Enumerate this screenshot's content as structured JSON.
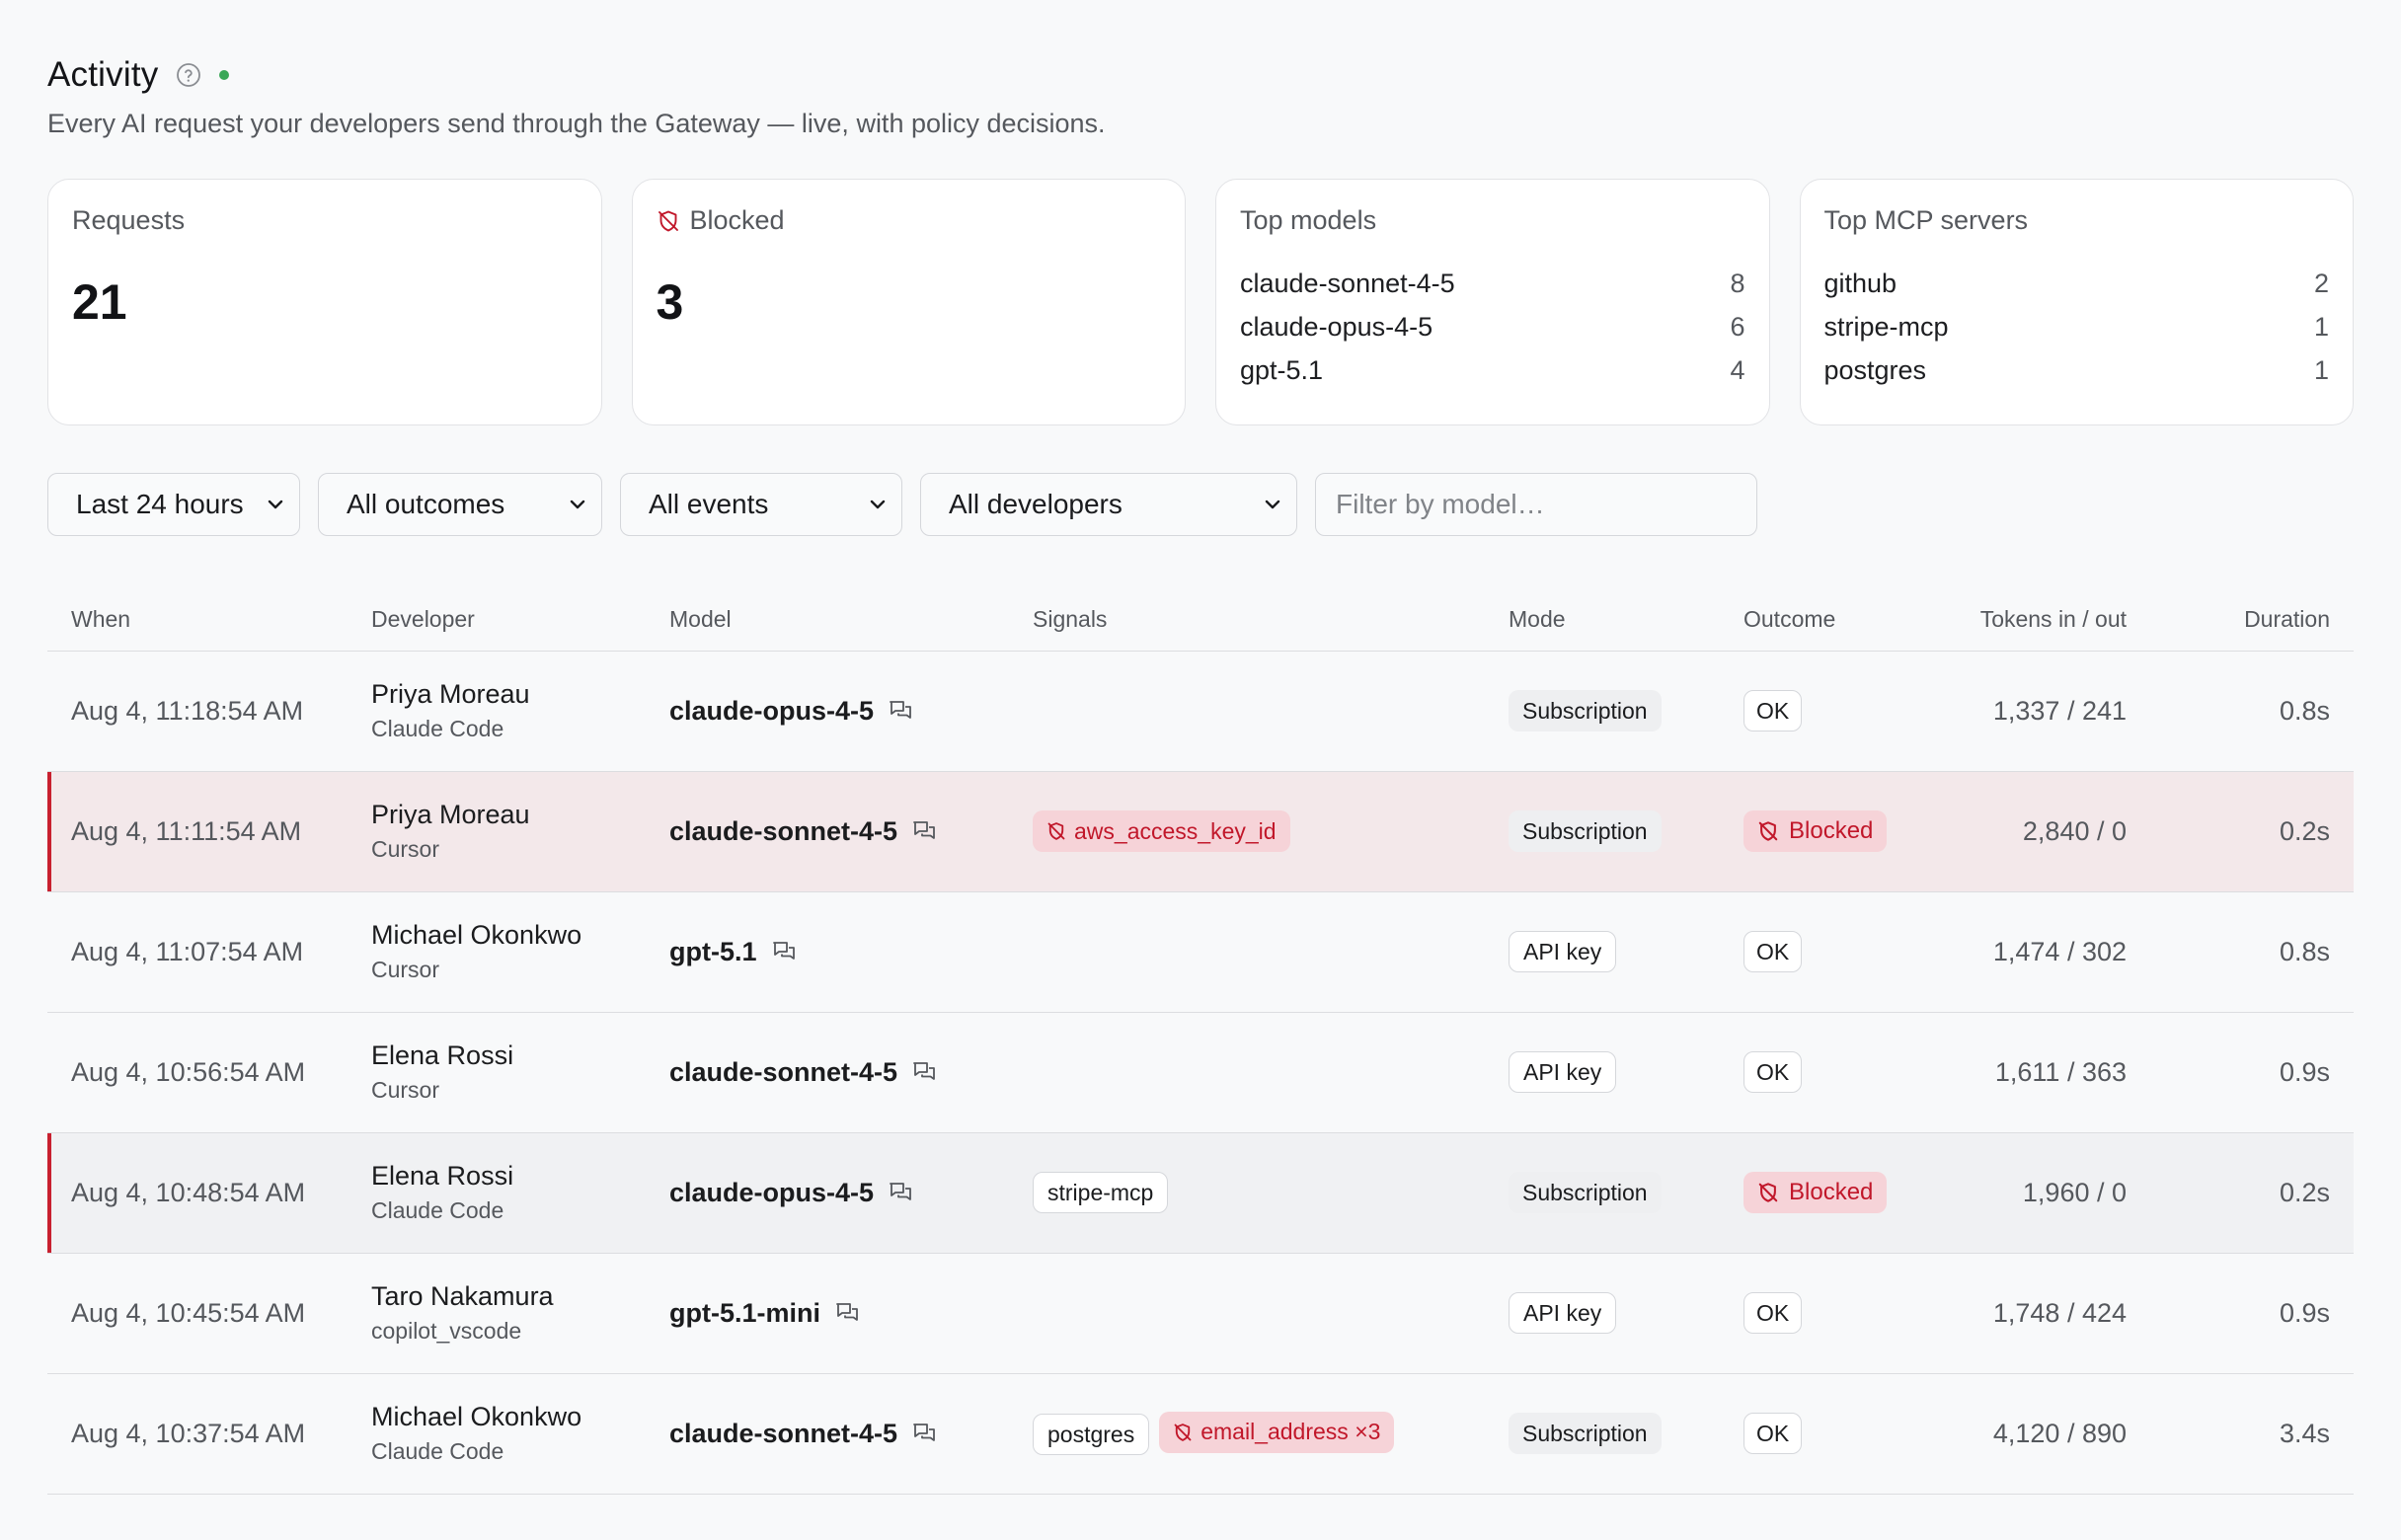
{
  "header": {
    "title": "Activity",
    "subtitle": "Every AI request your developers send through the Gateway — live, with policy decisions."
  },
  "cards": {
    "requests": {
      "label": "Requests",
      "value": "21"
    },
    "blocked": {
      "label": "Blocked",
      "value": "3"
    },
    "top_models": {
      "label": "Top models",
      "items": [
        {
          "name": "claude-sonnet-4-5",
          "count": "8"
        },
        {
          "name": "claude-opus-4-5",
          "count": "6"
        },
        {
          "name": "gpt-5.1",
          "count": "4"
        }
      ]
    },
    "top_mcp": {
      "label": "Top MCP servers",
      "items": [
        {
          "name": "github",
          "count": "2"
        },
        {
          "name": "stripe-mcp",
          "count": "1"
        },
        {
          "name": "postgres",
          "count": "1"
        }
      ]
    }
  },
  "filters": {
    "time": "Last 24 hours",
    "outcome": "All outcomes",
    "events": "All events",
    "developers": "All developers",
    "model_placeholder": "Filter by model…"
  },
  "table": {
    "columns": {
      "when": "When",
      "developer": "Developer",
      "model": "Model",
      "signals": "Signals",
      "mode": "Mode",
      "outcome": "Outcome",
      "tokens": "Tokens in / out",
      "duration": "Duration"
    },
    "rows": [
      {
        "when": "Aug 4, 11:18:54 AM",
        "developer": "Priya Moreau",
        "client": "Claude Code",
        "model": "claude-opus-4-5",
        "mode": "Subscription",
        "outcome": "OK",
        "tokens": "1,337 / 241",
        "duration": "0.8s"
      },
      {
        "when": "Aug 4, 11:11:54 AM",
        "developer": "Priya Moreau",
        "client": "Cursor",
        "model": "claude-sonnet-4-5",
        "signal_danger": "aws_access_key_id",
        "mode": "Subscription",
        "outcome": "Blocked",
        "tokens": "2,840 / 0",
        "duration": "0.2s"
      },
      {
        "when": "Aug 4, 11:07:54 AM",
        "developer": "Michael Okonkwo",
        "client": "Cursor",
        "model": "gpt-5.1",
        "mode": "API key",
        "outcome": "OK",
        "tokens": "1,474 / 302",
        "duration": "0.8s"
      },
      {
        "when": "Aug 4, 10:56:54 AM",
        "developer": "Elena Rossi",
        "client": "Cursor",
        "model": "claude-sonnet-4-5",
        "mode": "API key",
        "outcome": "OK",
        "tokens": "1,611 / 363",
        "duration": "0.9s"
      },
      {
        "when": "Aug 4, 10:48:54 AM",
        "developer": "Elena Rossi",
        "client": "Claude Code",
        "model": "claude-opus-4-5",
        "signal_neutral": "stripe-mcp",
        "mode": "Subscription",
        "outcome": "Blocked",
        "tokens": "1,960 / 0",
        "duration": "0.2s"
      },
      {
        "when": "Aug 4, 10:45:54 AM",
        "developer": "Taro Nakamura",
        "client": "copilot_vscode",
        "model": "gpt-5.1-mini",
        "mode": "API key",
        "outcome": "OK",
        "tokens": "1,748 / 424",
        "duration": "0.9s"
      },
      {
        "when": "Aug 4, 10:37:54 AM",
        "developer": "Michael Okonkwo",
        "client": "Claude Code",
        "model": "claude-sonnet-4-5",
        "signal_neutral": "postgres",
        "signal_danger": "email_address ×3",
        "mode": "Subscription",
        "outcome": "OK",
        "tokens": "4,120 / 890",
        "duration": "3.4s"
      }
    ]
  },
  "icons": {
    "help": "question-circle-icon",
    "live": "live-status-dot",
    "blocked": "shield-off-icon",
    "chevron": "chevron-down-icon",
    "conversation": "chat-bubbles-icon"
  },
  "colors": {
    "danger": "#c1172a",
    "danger_bg": "#f6d3d8",
    "blocked_row_bg": "#f3e8ea",
    "live": "#3aa757",
    "accent_bar": "#c8202f"
  }
}
